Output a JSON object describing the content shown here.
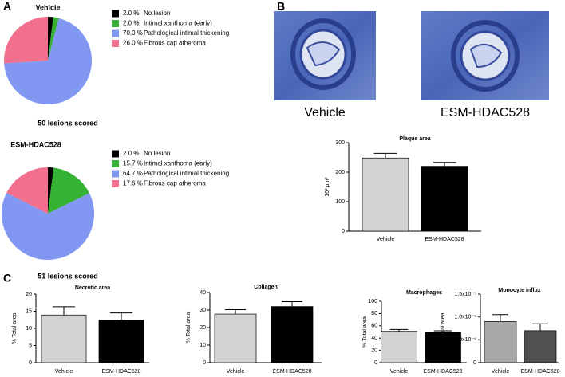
{
  "panel_labels": [
    "A",
    "B",
    "C"
  ],
  "images": [
    {
      "caption": "Vehicle"
    },
    {
      "caption": "ESM-HDAC528"
    }
  ],
  "chart_data": [
    {
      "type": "pie",
      "title": "Vehicle",
      "categories": [
        "No lesion",
        "Intimal xanthoma (early)",
        "Pathological intimal thickening",
        "Fibrous cap atheroma"
      ],
      "values": [
        2.0,
        2.0,
        70.0,
        26.0
      ],
      "value_labels": [
        "2.0 %",
        "2.0 %",
        "70.0 %",
        "26.0 %"
      ],
      "colors": [
        "#000000",
        "#34b233",
        "#8197f2",
        "#f2708e"
      ],
      "note": "50 lesions scored"
    },
    {
      "type": "pie",
      "title": "ESM-HDAC528",
      "categories": [
        "No lesion",
        "Intimal xanthoma (early)",
        "Pathological intimal thickening",
        "Fibrous cap atheroma"
      ],
      "values": [
        2.0,
        15.7,
        64.7,
        17.6
      ],
      "value_labels": [
        "2.0 %",
        "15.7 %",
        "64.7 %",
        "17.6 %"
      ],
      "colors": [
        "#000000",
        "#34b233",
        "#8197f2",
        "#f2708e"
      ],
      "note": "51 lesions scored"
    },
    {
      "type": "bar",
      "title": "Plaque area",
      "ylabel": "10³ µm²",
      "categories": [
        "Vehicle",
        "ESM-HDAC528"
      ],
      "values": [
        248,
        220
      ],
      "errors": [
        16,
        13
      ],
      "colors": [
        "#d3d3d3",
        "#000000"
      ],
      "ylim": [
        0,
        300
      ],
      "yticks": [
        0,
        100,
        200,
        300
      ]
    },
    {
      "type": "bar",
      "title": "Necrotic area",
      "ylabel": "% Total area",
      "categories": [
        "Vehicle",
        "ESM-HDAC528"
      ],
      "values": [
        13.9,
        12.4
      ],
      "errors": [
        2.4,
        2.1
      ],
      "colors": [
        "#d3d3d3",
        "#000000"
      ],
      "ylim": [
        0,
        20
      ],
      "yticks": [
        0,
        5,
        10,
        15,
        20
      ]
    },
    {
      "type": "bar",
      "title": "Collagen",
      "ylabel": "% Total area",
      "categories": [
        "Vehicle",
        "ESM-HDAC528"
      ],
      "values": [
        27.7,
        32.0
      ],
      "errors": [
        2.5,
        2.8
      ],
      "colors": [
        "#d3d3d3",
        "#000000"
      ],
      "ylim": [
        0,
        40
      ],
      "yticks": [
        0,
        10,
        20,
        30,
        40
      ]
    },
    {
      "type": "bar",
      "title": "Macrophages",
      "ylabel": "% Total area",
      "categories": [
        "Vehicle",
        "ESM-HDAC528"
      ],
      "values": [
        51,
        49
      ],
      "errors": [
        3,
        3
      ],
      "colors": [
        "#d3d3d3",
        "#000000"
      ],
      "ylim": [
        0,
        100
      ],
      "yticks": [
        0,
        20,
        40,
        60,
        80,
        100
      ]
    },
    {
      "type": "bar",
      "title": "Monocyte influx",
      "ylabel": "% Total area",
      "categories": [
        "Vehicle",
        "ESM-HDAC528"
      ],
      "values": [
        9e-06,
        7e-06
      ],
      "errors": [
        1.5e-06,
        1.5e-06
      ],
      "colors": [
        "#a9a9a9",
        "#505050"
      ],
      "ylim": [
        0,
        1.5e-05
      ],
      "yticks": [
        0,
        {
          "value": 5e-06,
          "label": "5.0x10⁻⁶"
        },
        {
          "value": 1e-05,
          "label": "1.0x10⁻⁵"
        },
        {
          "value": 1.5e-05,
          "label": "1.5x10⁻⁵"
        }
      ]
    }
  ]
}
